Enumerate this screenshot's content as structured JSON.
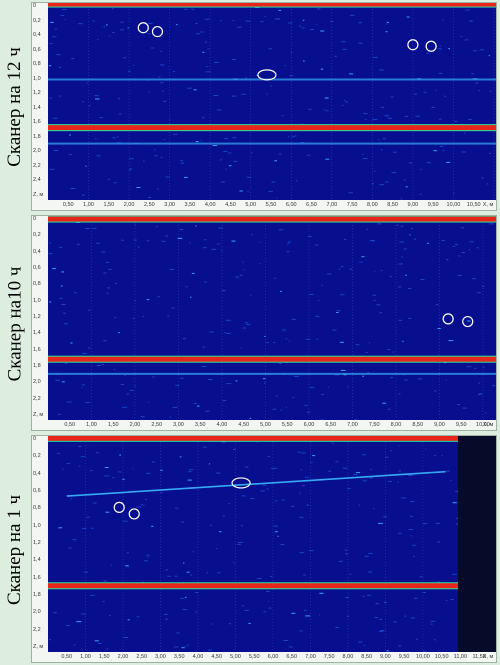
{
  "panels": [
    {
      "label": "Сканер на 12 ч",
      "yticks": [
        "0",
        "0,2",
        "0,4",
        "0,6",
        "0,8",
        "1,0",
        "1,2",
        "1,4",
        "1,6",
        "1,8",
        "2,0",
        "2,2",
        "2,4",
        "Z, м"
      ],
      "xticks": [
        "0,50",
        "1,00",
        "1,50",
        "2,00",
        "2,50",
        "3,00",
        "3,50",
        "4,00",
        "4,50",
        "5,00",
        "5,50",
        "6,00",
        "6,50",
        "7,00",
        "7,50",
        "8,00",
        "8,50",
        "9,00",
        "9,50",
        "10,00",
        "10,50",
        "X, м"
      ],
      "bands": [
        {
          "z": 0.02,
          "color": "#e8251a"
        },
        {
          "z": 1.62,
          "color": "#e8251a"
        }
      ],
      "faint_lines": [
        0.99,
        1.82
      ],
      "circles": [
        [
          2.35,
          0.32
        ],
        [
          2.7,
          0.37
        ],
        [
          9.0,
          0.54
        ],
        [
          9.45,
          0.56
        ],
        [
          5.4,
          0.93
        ]
      ]
    },
    {
      "label": "Сканер на10 ч",
      "yticks": [
        "0",
        "0,2",
        "0,4",
        "0,6",
        "0,8",
        "1,0",
        "1,2",
        "1,4",
        "1,6",
        "1,8",
        "2,0",
        "2,2",
        "Z, м"
      ],
      "xticks": [
        "0,50",
        "1,00",
        "1,50",
        "2,00",
        "2,50",
        "3,00",
        "3,50",
        "4,00",
        "4,50",
        "5,00",
        "5,50",
        "6,00",
        "6,50",
        "7,00",
        "7,50",
        "8,00",
        "8,50",
        "9,00",
        "9,50",
        "10,00",
        "X, м"
      ],
      "bands": [
        {
          "z": 0.04,
          "color": "#e8251a"
        },
        {
          "z": 1.62,
          "color": "#e8251a"
        }
      ],
      "faint_lines": [
        1.78
      ],
      "circles": [
        [
          9.2,
          1.16
        ],
        [
          9.65,
          1.19
        ]
      ]
    },
    {
      "label": "Сканер на 1 ч",
      "yticks": [
        "0",
        "0,2",
        "0,4",
        "0,6",
        "0,8",
        "1,0",
        "1,2",
        "1,4",
        "1,6",
        "1,8",
        "2,0",
        "2,2",
        "Z, м"
      ],
      "xticks": [
        "0,50",
        "1,00",
        "1,50",
        "2,00",
        "2,50",
        "3,00",
        "3,50",
        "4,00",
        "4,50",
        "5,00",
        "5,50",
        "6,00",
        "6,50",
        "7,00",
        "7,50",
        "8,00",
        "8,50",
        "9,00",
        "9,50",
        "10,00",
        "10,50",
        "11,00",
        "11,50",
        "X, м"
      ],
      "bands": [
        {
          "z": 0.03,
          "color": "#e8251a"
        },
        {
          "z": 1.6,
          "color": "#e8251a"
        }
      ],
      "faint_lines": [],
      "circles": [
        [
          1.9,
          0.76
        ],
        [
          2.3,
          0.83
        ],
        [
          5.15,
          0.5
        ]
      ]
    }
  ],
  "colors": {
    "background": "#070f8e",
    "reflection": "#e8251a",
    "label_bg": "#ddeee0"
  }
}
